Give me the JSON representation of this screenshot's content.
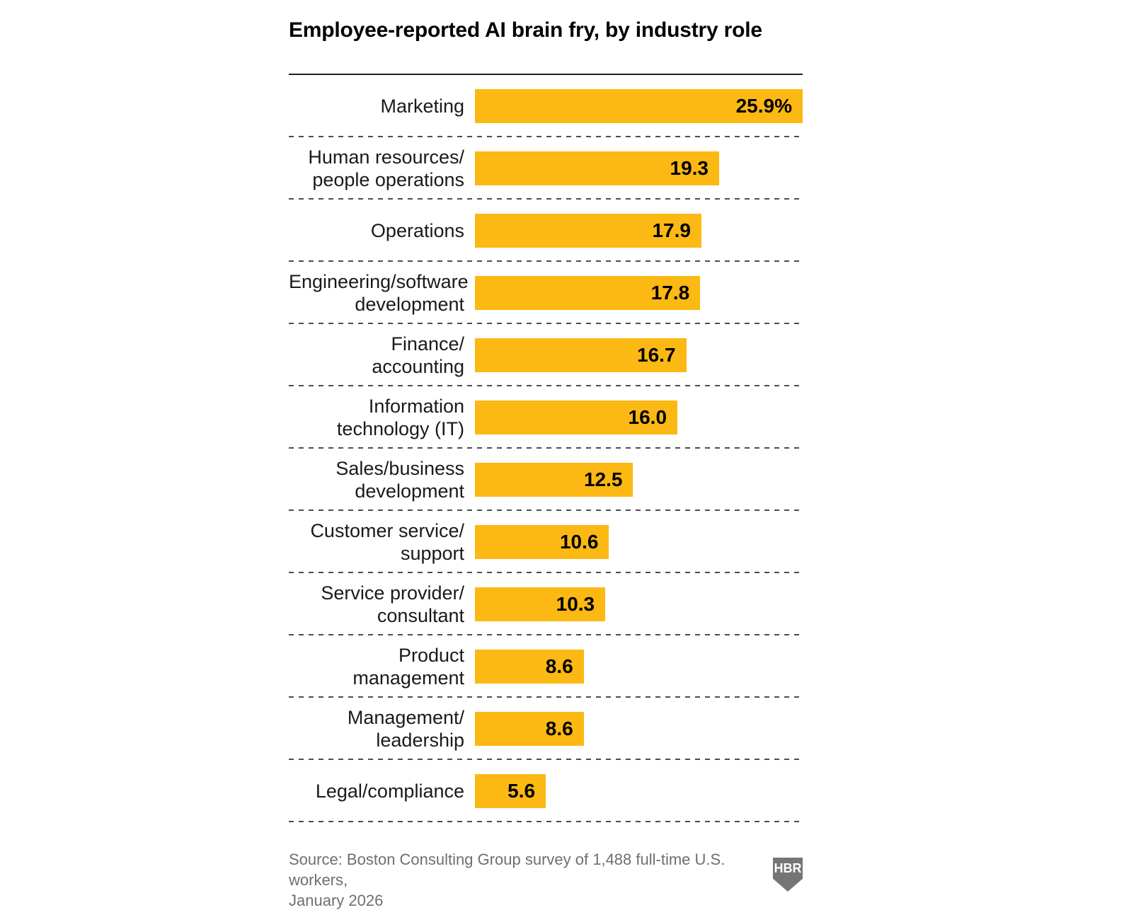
{
  "title": "Employee-reported AI brain fry, by industry role",
  "chart_data": {
    "type": "bar",
    "orientation": "horizontal",
    "title": "Employee-reported AI brain fry, by industry role",
    "xlabel": "",
    "ylabel": "",
    "xlim": [
      0,
      25.9
    ],
    "unit": "percent",
    "bar_color": "#FCB813",
    "grid": "dashed-row-separators",
    "categories": [
      "Marketing",
      "Human resources/people operations",
      "Operations",
      "Engineering/software development",
      "Finance/accounting",
      "Information technology (IT)",
      "Sales/business development",
      "Customer service/support",
      "Service provider/consultant",
      "Product management",
      "Management/leadership",
      "Legal/compliance"
    ],
    "category_lines": [
      [
        "Marketing"
      ],
      [
        "Human resources/",
        "people operations"
      ],
      [
        "Operations"
      ],
      [
        "Engineering/software",
        "development"
      ],
      [
        "Finance/",
        "accounting"
      ],
      [
        "Information",
        "technology (IT)"
      ],
      [
        "Sales/business",
        "development"
      ],
      [
        "Customer service/",
        "support"
      ],
      [
        "Service provider/",
        "consultant"
      ],
      [
        "Product",
        "management"
      ],
      [
        "Management/",
        "leadership"
      ],
      [
        "Legal/compliance"
      ]
    ],
    "values": [
      25.9,
      19.3,
      17.9,
      17.8,
      16.7,
      16.0,
      12.5,
      10.6,
      10.3,
      8.6,
      8.6,
      5.6
    ],
    "value_labels": [
      "25.9%",
      "19.3",
      "17.9",
      "17.8",
      "16.7",
      "16.0",
      "12.5",
      "10.6",
      "10.3",
      "8.6",
      "8.6",
      "5.6"
    ]
  },
  "footer": {
    "source_lines": [
      "Source: Boston Consulting Group survey of 1,488 full-time U.S. workers,",
      "January 2026"
    ],
    "logo_text": "HBR"
  }
}
